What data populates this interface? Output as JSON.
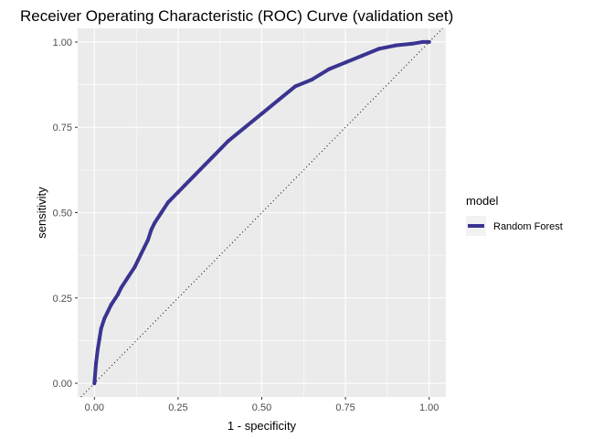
{
  "chart_data": {
    "type": "line",
    "title": "Receiver Operating Characteristic (ROC) Curve (validation set)",
    "xlabel": "1 - specificity",
    "ylabel": "sensitivity",
    "xlim": [
      -0.05,
      1.05
    ],
    "ylim": [
      -0.04,
      1.04
    ],
    "x_ticks": [
      0,
      0.25,
      0.5,
      0.75,
      1
    ],
    "x_tick_labels": [
      "0.00",
      "0.25",
      "0.50",
      "0.75",
      "1.00"
    ],
    "y_ticks": [
      0,
      0.25,
      0.5,
      0.75,
      1
    ],
    "y_tick_labels": [
      "0.00",
      "0.25",
      "0.50",
      "0.75",
      "1.00"
    ],
    "grid": true,
    "panel_background": "#ebebeb",
    "grid_color": "#ffffff",
    "legend": {
      "title": "model",
      "position": "right",
      "entries": [
        "Random Forest"
      ]
    },
    "reference_line": {
      "style": "dotted",
      "from": [
        0,
        0
      ],
      "to": [
        1,
        1
      ],
      "color": "#000000"
    },
    "series": [
      {
        "name": "Random Forest",
        "color": "#3a3491",
        "x": [
          0.0,
          0.005,
          0.01,
          0.015,
          0.02,
          0.03,
          0.04,
          0.05,
          0.07,
          0.08,
          0.1,
          0.12,
          0.13,
          0.14,
          0.16,
          0.17,
          0.18,
          0.2,
          0.22,
          0.25,
          0.27,
          0.3,
          0.33,
          0.35,
          0.38,
          0.4,
          0.45,
          0.5,
          0.55,
          0.6,
          0.65,
          0.7,
          0.75,
          0.8,
          0.85,
          0.9,
          0.95,
          0.98,
          1.0
        ],
        "y": [
          0.0,
          0.06,
          0.1,
          0.13,
          0.16,
          0.19,
          0.21,
          0.23,
          0.26,
          0.28,
          0.31,
          0.34,
          0.36,
          0.38,
          0.42,
          0.45,
          0.47,
          0.5,
          0.53,
          0.56,
          0.58,
          0.61,
          0.64,
          0.66,
          0.69,
          0.71,
          0.75,
          0.79,
          0.83,
          0.87,
          0.89,
          0.92,
          0.94,
          0.96,
          0.98,
          0.99,
          0.995,
          1.0,
          1.0
        ]
      }
    ]
  }
}
